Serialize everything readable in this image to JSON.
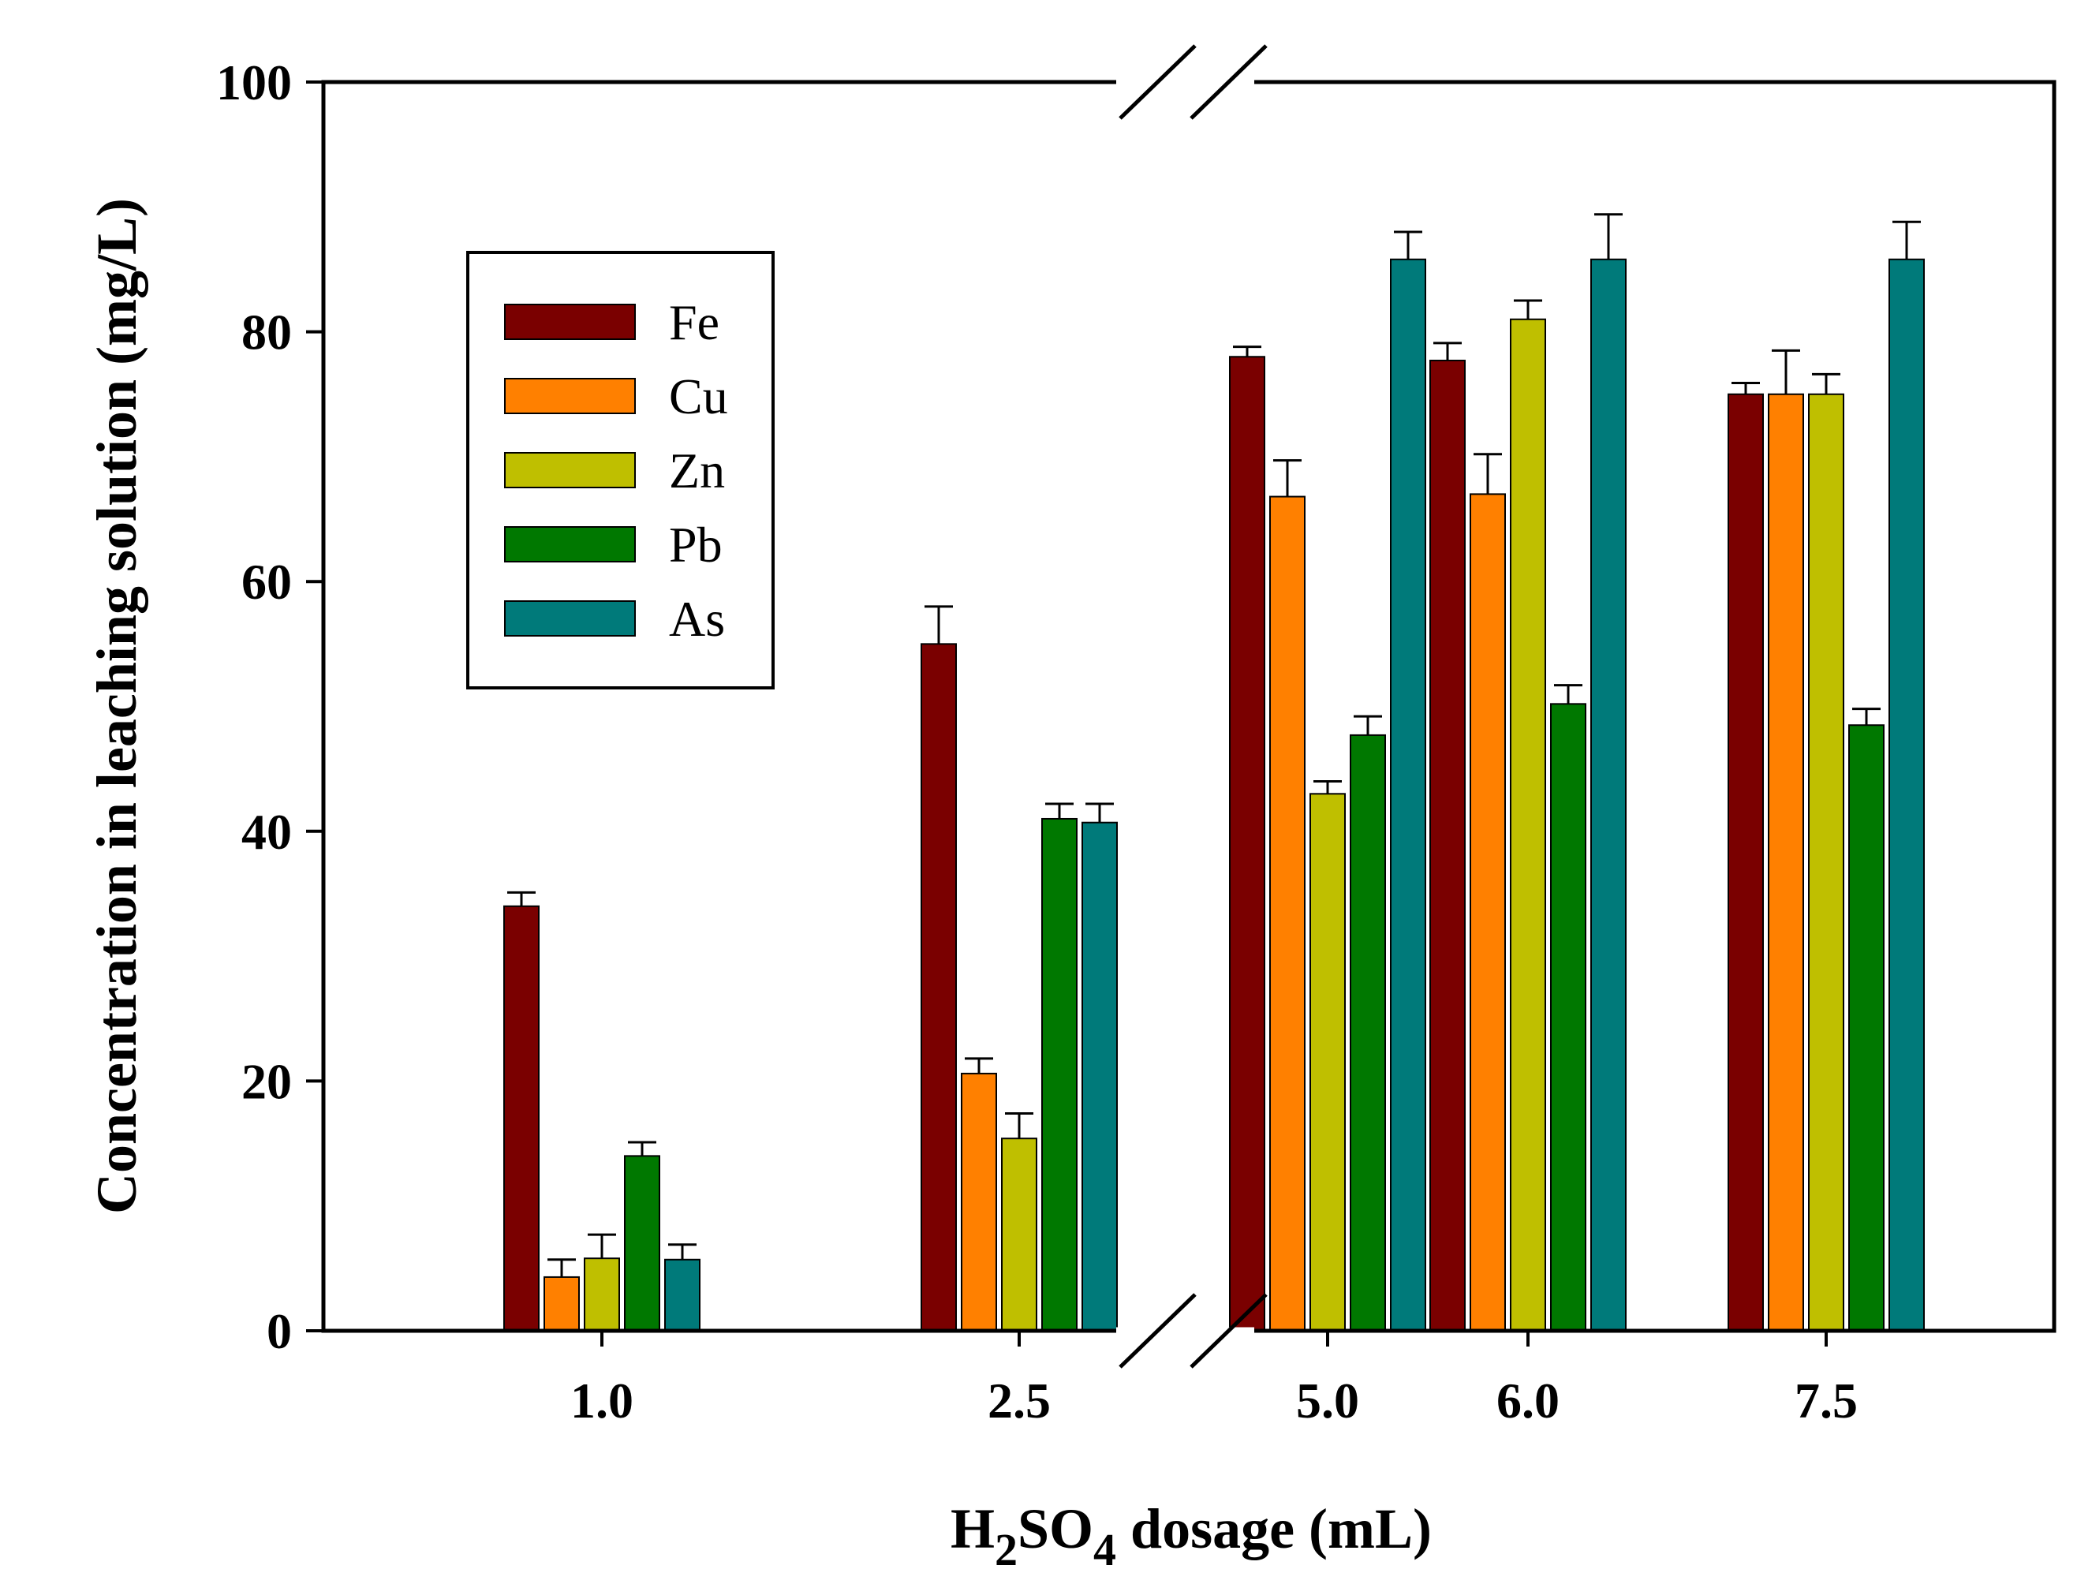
{
  "chart_data": {
    "type": "bar",
    "title": "",
    "xlabel": {
      "prefix": "H",
      "sub1": "2",
      "mid": "SO",
      "sub2": "4",
      "suffix": " dosage (mL)"
    },
    "ylabel": "Concentration in leaching solution (mg/L)",
    "ylim": [
      0,
      100
    ],
    "yticks": [
      "0",
      "20",
      "40",
      "60",
      "80",
      "100"
    ],
    "axis_break": "between 2.5 and 5.0",
    "categories": [
      "1.0",
      "2.5",
      "5.0",
      "6.0",
      "7.5"
    ],
    "series": [
      {
        "name": "Fe",
        "color": "#7a0000",
        "values": [
          34.0,
          55.0,
          78.0,
          77.7,
          75.0
        ],
        "errors": [
          1.1,
          3.0,
          0.8,
          1.4,
          0.9
        ]
      },
      {
        "name": "Cu",
        "color": "#ff8000",
        "values": [
          4.3,
          20.6,
          66.8,
          67.0,
          75.0
        ],
        "errors": [
          1.4,
          1.2,
          2.9,
          3.2,
          3.5
        ]
      },
      {
        "name": "Zn",
        "color": "#bfbf00",
        "values": [
          5.8,
          15.4,
          43.0,
          81.0,
          75.0
        ],
        "errors": [
          1.9,
          2.0,
          1.0,
          1.5,
          1.6
        ]
      },
      {
        "name": "Pb",
        "color": "#007800",
        "values": [
          14.0,
          41.0,
          47.7,
          50.2,
          48.5
        ],
        "errors": [
          1.1,
          1.2,
          1.5,
          1.5,
          1.3
        ]
      },
      {
        "name": "As",
        "color": "#007a7a",
        "values": [
          5.7,
          40.7,
          85.8,
          85.8,
          85.8
        ],
        "errors": [
          1.2,
          1.5,
          2.2,
          3.6,
          3.0
        ]
      }
    ],
    "legend": {
      "position": "top-left"
    }
  }
}
